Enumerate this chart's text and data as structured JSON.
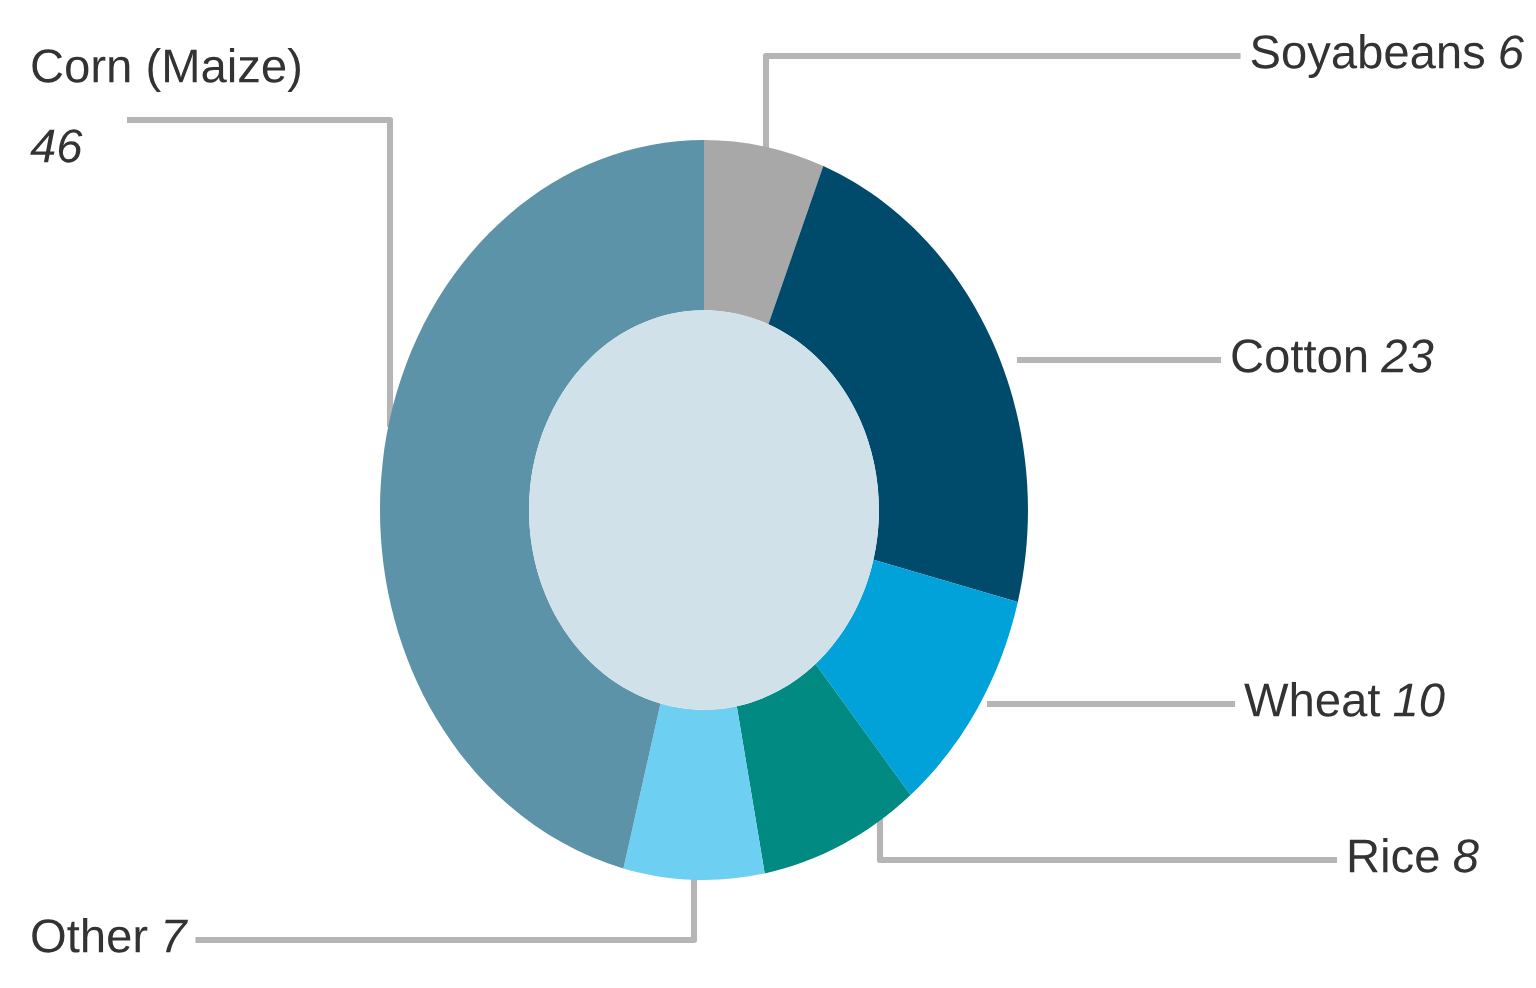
{
  "chart_data": {
    "type": "donut",
    "categories": [
      "Soyabeans",
      "Cotton",
      "Wheat",
      "Rice",
      "Other",
      "Corn (Maize)"
    ],
    "values": [
      6,
      23,
      10,
      8,
      7,
      46
    ],
    "colors": [
      "#a8a8a8",
      "#004b6b",
      "#00a2d9",
      "#008a82",
      "#6dcff2",
      "#5c93a8"
    ],
    "data_labels": true,
    "legend": false
  }
}
